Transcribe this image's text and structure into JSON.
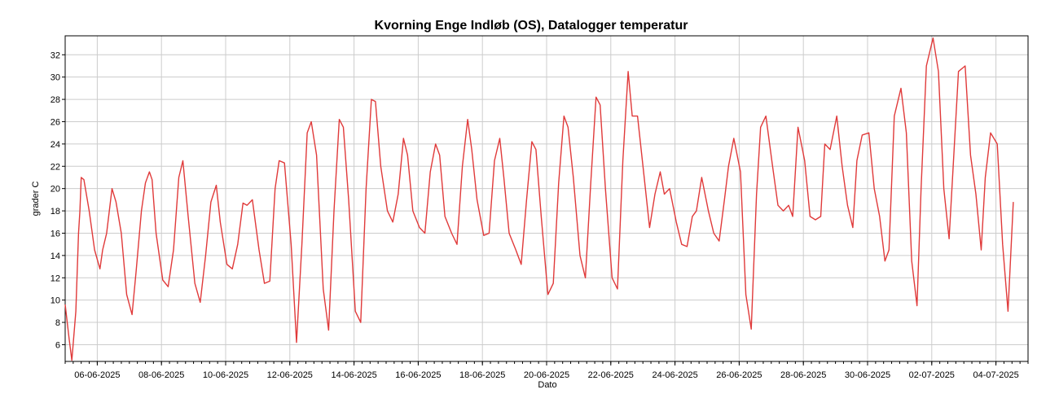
{
  "chart_data": {
    "type": "line",
    "title": "Kvorning Enge Indløb (OS), Datalogger temperatur",
    "xlabel": "Dato",
    "ylabel": "grader C",
    "x_range": [
      "2025-06-05",
      "2025-07-05"
    ],
    "ylim": [
      4.5,
      33.7
    ],
    "x_ticks": [
      "06-06-2025",
      "08-06-2025",
      "10-06-2025",
      "12-06-2025",
      "14-06-2025",
      "16-06-2025",
      "18-06-2025",
      "20-06-2025",
      "22-06-2025",
      "24-06-2025",
      "26-06-2025",
      "28-06-2025",
      "30-06-2025",
      "02-07-2025",
      "04-07-2025"
    ],
    "y_ticks": [
      6,
      8,
      10,
      12,
      14,
      16,
      18,
      20,
      22,
      24,
      26,
      28,
      30,
      32
    ],
    "grid": true,
    "legend": "none",
    "colors": {
      "line": "#e03a3a",
      "grid": "#cccccc",
      "axis": "#000000"
    },
    "series": [
      {
        "x": [
          "2025-06-05 00:00",
          "2025-06-05 03:00",
          "2025-06-05 05:00",
          "2025-06-05 08:00",
          "2025-06-05 10:00",
          "2025-06-05 11:00",
          "2025-06-05 12:00",
          "2025-06-05 14:00",
          "2025-06-05 18:00",
          "2025-06-05 22:00",
          "2025-06-06 02:00",
          "2025-06-06 04:00",
          "2025-06-06 07:00",
          "2025-06-06 11:00",
          "2025-06-06 14:00",
          "2025-06-06 18:00",
          "2025-06-06 22:00",
          "2025-06-07 02:00",
          "2025-06-07 05:00",
          "2025-06-07 09:00",
          "2025-06-07 12:00",
          "2025-06-07 15:00",
          "2025-06-07 17:00",
          "2025-06-07 20:00",
          "2025-06-08 01:00",
          "2025-06-08 05:00",
          "2025-06-08 09:00",
          "2025-06-08 13:00",
          "2025-06-08 16:00",
          "2025-06-08 20:00",
          "2025-06-09 01:00",
          "2025-06-09 05:00",
          "2025-06-09 09:00",
          "2025-06-09 13:00",
          "2025-06-09 17:00",
          "2025-06-09 20:00",
          "2025-06-10 01:00",
          "2025-06-10 05:00",
          "2025-06-10 09:00",
          "2025-06-10 13:00",
          "2025-06-10 16:00",
          "2025-06-10 20:00",
          "2025-06-11 01:00",
          "2025-06-11 05:00",
          "2025-06-11 09:00",
          "2025-06-11 13:00",
          "2025-06-11 16:00",
          "2025-06-11 20:00",
          "2025-06-12 01:00",
          "2025-06-12 05:00",
          "2025-06-12 09:00",
          "2025-06-12 13:00",
          "2025-06-12 16:00",
          "2025-06-12 20:00",
          "2025-06-13 01:00",
          "2025-06-13 05:00",
          "2025-06-13 09:00",
          "2025-06-13 13:00",
          "2025-06-13 16:00",
          "2025-06-13 20:00",
          "2025-06-14 01:00",
          "2025-06-14 05:00",
          "2025-06-14 09:00",
          "2025-06-14 13:00",
          "2025-06-14 16:00",
          "2025-06-14 20:00",
          "2025-06-15 01:00",
          "2025-06-15 05:00",
          "2025-06-15 09:00",
          "2025-06-15 13:00",
          "2025-06-15 16:00",
          "2025-06-15 20:00",
          "2025-06-16 01:00",
          "2025-06-16 05:00",
          "2025-06-16 09:00",
          "2025-06-16 13:00",
          "2025-06-16 16:00",
          "2025-06-16 20:00",
          "2025-06-17 01:00",
          "2025-06-17 05:00",
          "2025-06-17 09:00",
          "2025-06-17 13:00",
          "2025-06-17 16:00",
          "2025-06-17 20:00",
          "2025-06-18 01:00",
          "2025-06-18 05:00",
          "2025-06-18 09:00",
          "2025-06-18 13:00",
          "2025-06-18 16:00",
          "2025-06-18 20:00",
          "2025-06-19 01:00",
          "2025-06-19 05:00",
          "2025-06-19 09:00",
          "2025-06-19 13:00",
          "2025-06-19 16:00",
          "2025-06-19 20:00",
          "2025-06-20 01:00",
          "2025-06-20 05:00",
          "2025-06-20 09:00",
          "2025-06-20 13:00",
          "2025-06-20 16:00",
          "2025-06-20 20:00",
          "2025-06-21 01:00",
          "2025-06-21 05:00",
          "2025-06-21 09:00",
          "2025-06-21 13:00",
          "2025-06-21 16:00",
          "2025-06-21 20:00",
          "2025-06-22 01:00",
          "2025-06-22 05:00",
          "2025-06-22 09:00",
          "2025-06-22 13:00",
          "2025-06-22 16:00",
          "2025-06-22 20:00",
          "2025-06-23 01:00",
          "2025-06-23 05:00",
          "2025-06-23 09:00",
          "2025-06-23 13:00",
          "2025-06-23 16:00",
          "2025-06-23 20:00",
          "2025-06-24 01:00",
          "2025-06-24 05:00",
          "2025-06-24 09:00",
          "2025-06-24 13:00",
          "2025-06-24 16:00",
          "2025-06-24 20:00",
          "2025-06-25 01:00",
          "2025-06-25 05:00",
          "2025-06-25 09:00",
          "2025-06-25 13:00",
          "2025-06-25 16:00",
          "2025-06-25 20:00",
          "2025-06-26 01:00",
          "2025-06-26 05:00",
          "2025-06-26 09:00",
          "2025-06-26 13:00",
          "2025-06-26 16:00",
          "2025-06-26 20:00",
          "2025-06-27 01:00",
          "2025-06-27 05:00",
          "2025-06-27 09:00",
          "2025-06-27 13:00",
          "2025-06-27 16:00",
          "2025-06-27 20:00",
          "2025-06-28 01:00",
          "2025-06-28 05:00",
          "2025-06-28 09:00",
          "2025-06-28 13:00",
          "2025-06-28 16:00",
          "2025-06-28 20:00",
          "2025-06-29 01:00",
          "2025-06-29 05:00",
          "2025-06-29 09:00",
          "2025-06-29 13:00",
          "2025-06-29 16:00",
          "2025-06-29 20:00",
          "2025-06-30 01:00",
          "2025-06-30 05:00",
          "2025-06-30 09:00",
          "2025-06-30 13:00",
          "2025-06-30 16:00",
          "2025-06-30 20:00",
          "2025-07-01 01:00",
          "2025-07-01 05:00",
          "2025-07-01 09:00",
          "2025-07-01 13:00",
          "2025-07-01 16:00",
          "2025-07-01 20:00",
          "2025-07-02 01:00",
          "2025-07-02 05:00",
          "2025-07-02 09:00",
          "2025-07-02 13:00",
          "2025-07-02 16:00",
          "2025-07-02 20:00",
          "2025-07-03 01:00",
          "2025-07-03 05:00",
          "2025-07-03 09:00",
          "2025-07-03 13:00",
          "2025-07-03 16:00",
          "2025-07-03 20:00",
          "2025-07-04 01:00",
          "2025-07-04 05:00",
          "2025-07-04 09:00",
          "2025-07-04 13:00"
        ],
        "values": [
          9.6,
          6.5,
          4.6,
          9.0,
          16.0,
          18.0,
          21.0,
          20.8,
          18.0,
          14.5,
          12.8,
          14.5,
          16.0,
          20.0,
          18.8,
          16.0,
          10.5,
          8.7,
          12.5,
          18.0,
          20.5,
          21.5,
          20.8,
          16.0,
          11.8,
          11.2,
          14.5,
          21.0,
          22.5,
          17.5,
          11.5,
          9.8,
          14.0,
          18.8,
          20.3,
          17.0,
          13.2,
          12.8,
          15.0,
          18.7,
          18.5,
          19.0,
          14.5,
          11.5,
          11.7,
          20.0,
          22.5,
          22.3,
          15.0,
          6.2,
          15.0,
          25.0,
          26.0,
          23.0,
          11.0,
          7.3,
          18.0,
          26.2,
          25.5,
          19.0,
          9.0,
          8.0,
          20.0,
          28.0,
          27.8,
          22.0,
          18.0,
          17.0,
          19.5,
          24.5,
          23.0,
          18.0,
          16.5,
          16.0,
          21.5,
          24.0,
          23.0,
          17.5,
          16.0,
          15.0,
          22.0,
          26.2,
          23.5,
          19.0,
          15.8,
          16.0,
          22.5,
          24.5,
          21.0,
          16.0,
          14.5,
          13.2,
          19.0,
          24.2,
          23.5,
          17.5,
          10.5,
          11.5,
          20.5,
          26.5,
          25.5,
          21.0,
          14.0,
          12.0,
          20.5,
          28.2,
          27.5,
          20.0,
          12.0,
          11.0,
          22.5,
          30.5,
          26.5,
          26.5,
          21.0,
          16.5,
          19.5,
          21.5,
          19.5,
          20.0,
          17.0,
          15.0,
          14.8,
          17.5,
          18.0,
          21.0,
          18.0,
          16.0,
          15.3,
          19.0,
          22.0,
          24.5,
          21.5,
          10.5,
          7.4,
          19.5,
          25.5,
          26.5,
          22.0,
          18.5,
          18.0,
          18.5,
          17.5,
          25.5,
          22.5,
          17.5,
          17.2,
          17.5,
          24.0,
          23.5,
          26.5,
          22.0,
          18.5,
          16.5,
          22.5,
          24.8,
          25.0,
          20.0,
          17.5,
          13.5,
          14.5,
          26.5,
          29.0,
          25.0,
          13.5,
          9.5,
          20.0,
          31.0,
          33.5,
          30.5,
          20.0,
          15.5,
          22.0,
          30.5,
          31.0,
          23.0,
          19.5,
          14.5,
          21.0,
          25.0,
          24.0,
          15.0,
          9.0,
          18.8
        ]
      }
    ]
  }
}
